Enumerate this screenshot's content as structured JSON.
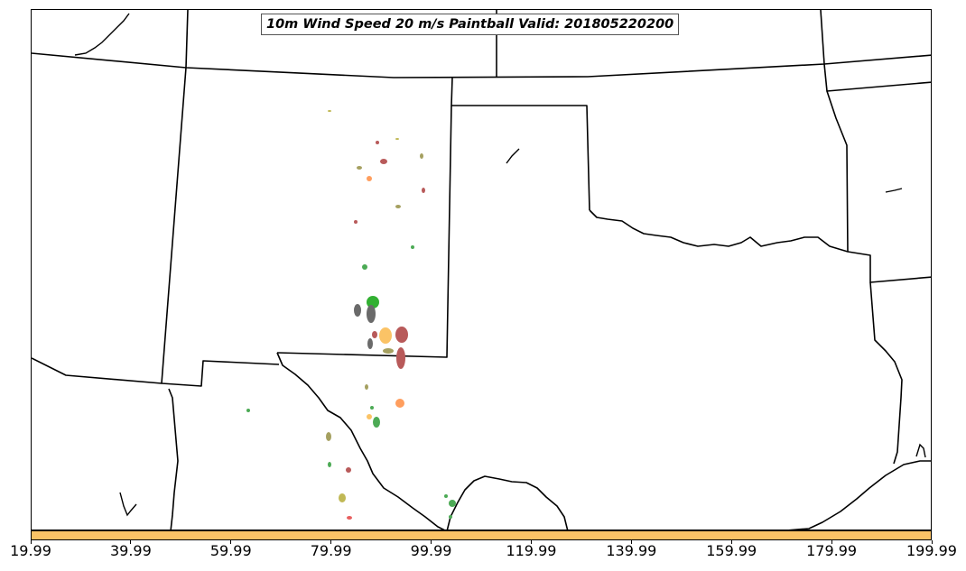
{
  "title": "10m Wind Speed 20 m/s Paintball Valid: 201805220200",
  "colorbar": {
    "color": "#fbc366",
    "tick_labels": [
      "19.99",
      "39.99",
      "59.99",
      "79.99",
      "99.99",
      "119.99",
      "139.99",
      "159.99",
      "179.99",
      "199.99"
    ]
  },
  "colors": {
    "background": "#ffffff",
    "borders": "#000000",
    "paintball_palette": [
      "#b85a5a",
      "#4caa55",
      "#fbc366",
      "#a5a060",
      "#ff9e5e",
      "#6a6a6a",
      "#32b032",
      "#c0b855",
      "#e85f5f"
    ]
  }
}
